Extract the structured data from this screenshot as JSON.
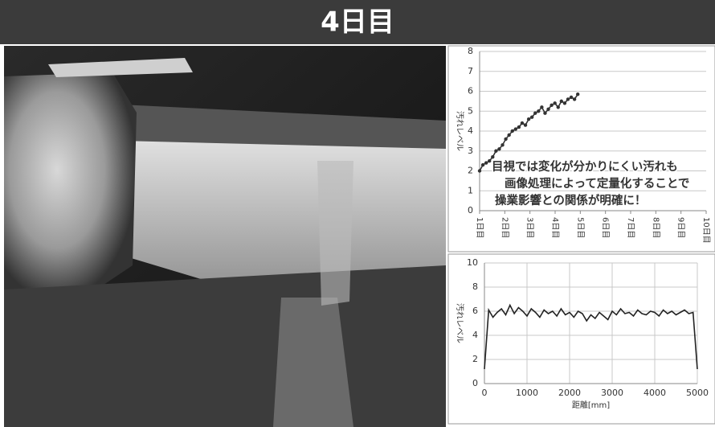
{
  "title": "4日目",
  "chart_data": [
    {
      "type": "line",
      "markers": true,
      "color": "#333333",
      "ylabel": "汚れレベル",
      "annotation": [
        "目視では変化が分かりにくい汚れも",
        "画像処理によって定量化することで",
        "操業影響との関係が明確に！"
      ],
      "x": [
        1.0,
        1.13,
        1.26,
        1.39,
        1.52,
        1.65,
        1.78,
        1.91,
        2.04,
        2.17,
        2.3,
        2.43,
        2.56,
        2.69,
        2.82,
        2.95,
        3.08,
        3.21,
        3.34,
        3.47,
        3.6,
        3.73,
        3.86,
        3.99,
        4.12,
        4.25,
        4.38,
        4.51,
        4.64,
        4.77,
        4.9
      ],
      "values": [
        2.0,
        2.3,
        2.4,
        2.5,
        2.7,
        3.0,
        3.1,
        3.3,
        3.6,
        3.8,
        4.0,
        4.1,
        4.2,
        4.4,
        4.3,
        4.6,
        4.7,
        4.9,
        5.0,
        5.2,
        4.9,
        5.1,
        5.3,
        5.4,
        5.2,
        5.5,
        5.4,
        5.6,
        5.7,
        5.6,
        5.85
      ],
      "xlim": [
        1,
        10
      ],
      "xticks": [
        {
          "value": 1,
          "label": "1日目"
        },
        {
          "value": 2,
          "label": "2日目"
        },
        {
          "value": 3,
          "label": "3日目"
        },
        {
          "value": 4,
          "label": "4日目"
        },
        {
          "value": 5,
          "label": "5日目"
        },
        {
          "value": 6,
          "label": "6日目"
        },
        {
          "value": 7,
          "label": "7日目"
        },
        {
          "value": 8,
          "label": "8日目"
        },
        {
          "value": 9,
          "label": "9日目"
        },
        {
          "value": 10,
          "label": "10日目"
        }
      ],
      "ylim": [
        0,
        8
      ],
      "yticks": [
        0,
        1,
        2,
        3,
        4,
        5,
        6,
        7,
        8
      ],
      "grid": "y"
    },
    {
      "type": "line",
      "markers": false,
      "color": "#222222",
      "ylabel": "汚れレベル",
      "xlabel": "距離[mm]",
      "x": [
        0,
        100,
        200,
        300,
        400,
        500,
        600,
        700,
        800,
        900,
        1000,
        1100,
        1200,
        1300,
        1400,
        1500,
        1600,
        1700,
        1800,
        1900,
        2000,
        2100,
        2200,
        2300,
        2400,
        2500,
        2600,
        2700,
        2800,
        2900,
        3000,
        3100,
        3200,
        3300,
        3400,
        3500,
        3600,
        3700,
        3800,
        3900,
        4000,
        4100,
        4200,
        4300,
        4400,
        4500,
        4600,
        4700,
        4800,
        4900,
        5000
      ],
      "values": [
        1.2,
        6.1,
        5.5,
        5.9,
        6.2,
        5.7,
        6.5,
        5.8,
        6.3,
        6.0,
        5.6,
        6.2,
        5.9,
        5.5,
        6.1,
        5.8,
        6.0,
        5.6,
        6.2,
        5.7,
        5.9,
        5.5,
        6.0,
        5.8,
        5.2,
        5.7,
        5.4,
        5.9,
        5.6,
        5.3,
        6.0,
        5.7,
        6.2,
        5.8,
        5.9,
        5.6,
        6.1,
        5.8,
        5.7,
        6.0,
        5.9,
        5.6,
        6.1,
        5.8,
        6.0,
        5.7,
        5.9,
        6.1,
        5.8,
        5.9,
        1.2
      ],
      "xlim": [
        0,
        5000
      ],
      "xticks": [
        0,
        1000,
        2000,
        3000,
        4000,
        5000
      ],
      "ylim": [
        0,
        10
      ],
      "yticks": [
        0,
        2,
        4,
        6,
        8,
        10
      ],
      "grid": "both"
    }
  ]
}
